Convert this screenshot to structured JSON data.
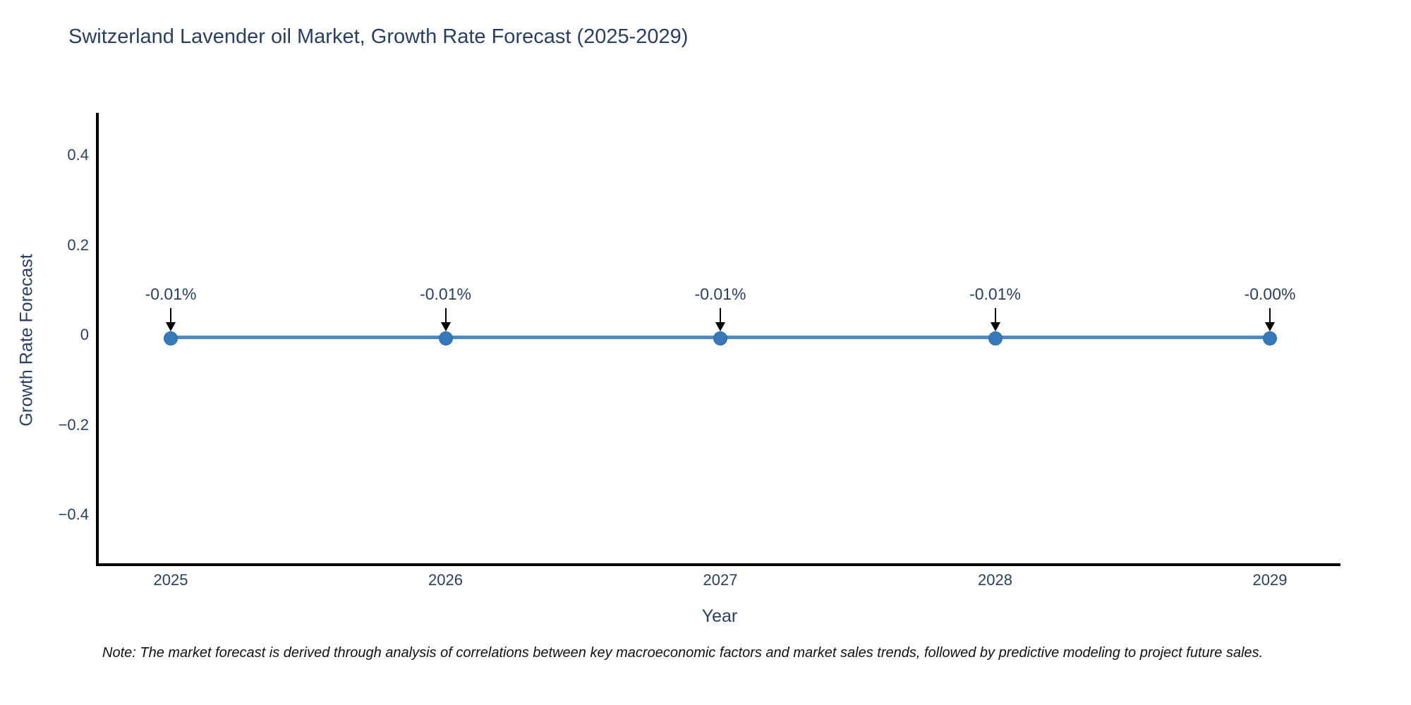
{
  "title": "Switzerland Lavender oil Market, Growth Rate Forecast (2025-2029)",
  "note": "Note: The market forecast is derived through analysis of correlations between key macroeconomic factors and market sales trends, followed by predictive modeling to project future sales.",
  "colors": {
    "title_text": "#2a3f5f",
    "axis_line": "#000000",
    "series_line": "#5389c1",
    "marker_fill": "#3679b8",
    "marker_edge": "#2f6da8",
    "annotation_arrow": "#000000",
    "tick_text": "#2a3f5f",
    "note_text": "#111111",
    "background": "#ffffff"
  },
  "chart_data": {
    "type": "line",
    "title": "Switzerland Lavender oil Market, Growth Rate Forecast (2025-2029)",
    "xlabel": "Year",
    "ylabel": "Growth Rate Forecast",
    "x": [
      2025,
      2026,
      2027,
      2028,
      2029
    ],
    "x_tick_labels": [
      "2025",
      "2026",
      "2027",
      "2028",
      "2029"
    ],
    "y_percent": [
      -0.01,
      -0.01,
      -0.01,
      -0.01,
      0.0
    ],
    "point_labels": [
      "-0.01%",
      "-0.01%",
      "-0.01%",
      "-0.01%",
      "-0.00%"
    ],
    "y_tick_values": [
      0.4,
      0.2,
      0,
      -0.2,
      -0.4
    ],
    "y_tick_labels": [
      "0.4",
      "0.2",
      "0",
      "−0.2",
      "−0.4"
    ],
    "ylim": [
      -0.5,
      0.5
    ],
    "grid": false,
    "legend": "none",
    "marker": "circle",
    "annotations": "value labels with downward arrows at each point"
  }
}
